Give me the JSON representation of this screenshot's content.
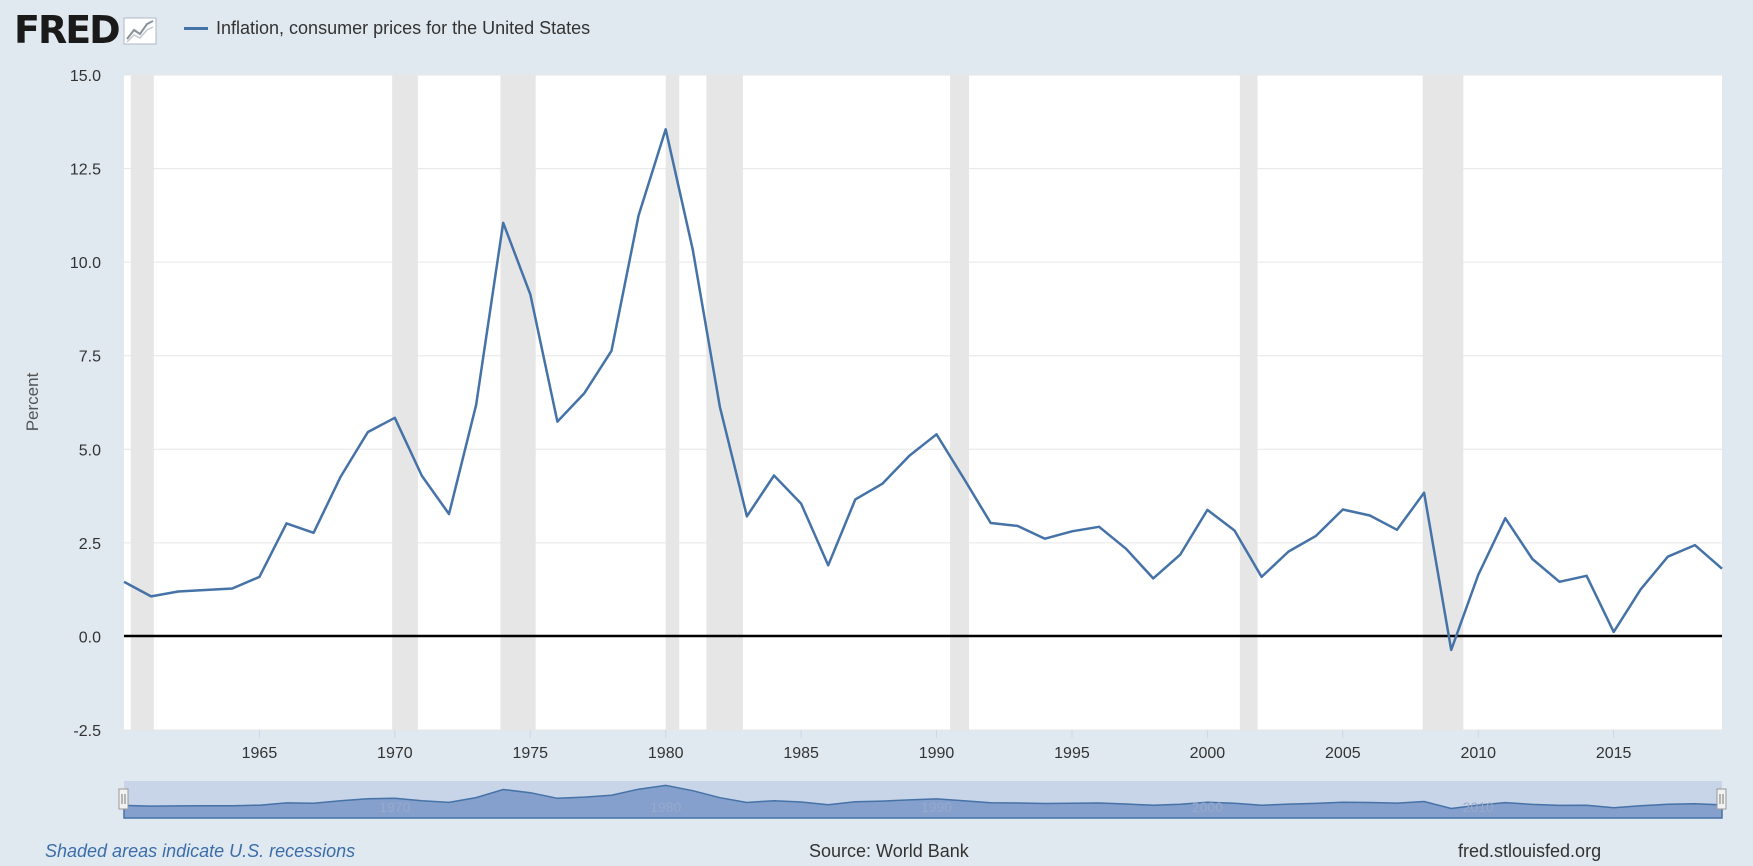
{
  "header": {
    "logo_text": "FRED",
    "legend_label": "Inflation, consumer prices for the United States",
    "line_color": "#4572a7",
    "recession_color": "#e6e6e6"
  },
  "footer": {
    "recession_note": "Shaded areas indicate U.S. recessions",
    "source": "Source: World Bank",
    "site": "fred.stlouisfed.org"
  },
  "navigator": {
    "tick_labels": [
      "1970",
      "1980",
      "1990",
      "2000",
      "2010"
    ]
  },
  "chart_data": {
    "type": "line",
    "title": "",
    "xlabel": "",
    "ylabel": "Percent",
    "xlim": [
      1960,
      2019
    ],
    "ylim": [
      -2.5,
      15.0
    ],
    "yticks": [
      "15.0",
      "12.5",
      "10.0",
      "7.5",
      "5.0",
      "2.5",
      "0.0",
      "-2.5"
    ],
    "xticks": [
      "1965",
      "1970",
      "1975",
      "1980",
      "1985",
      "1990",
      "1995",
      "2000",
      "2005",
      "2010",
      "2015"
    ],
    "grid": true,
    "legend": "top-left",
    "recessions": [
      [
        1960.25,
        1961.1
      ],
      [
        1969.9,
        1970.85
      ],
      [
        1973.9,
        1975.2
      ],
      [
        1980.0,
        1980.5
      ],
      [
        1981.5,
        1982.85
      ],
      [
        1990.5,
        1991.2
      ],
      [
        2001.2,
        2001.85
      ],
      [
        2007.95,
        2009.45
      ]
    ],
    "series": [
      {
        "name": "Inflation, consumer prices for the United States",
        "x": [
          1960,
          1961,
          1962,
          1963,
          1964,
          1965,
          1966,
          1967,
          1968,
          1969,
          1970,
          1971,
          1972,
          1973,
          1974,
          1975,
          1976,
          1977,
          1978,
          1979,
          1980,
          1981,
          1982,
          1983,
          1984,
          1985,
          1986,
          1987,
          1988,
          1989,
          1990,
          1991,
          1992,
          1993,
          1994,
          1995,
          1996,
          1997,
          1998,
          1999,
          2000,
          2001,
          2002,
          2003,
          2004,
          2005,
          2006,
          2007,
          2008,
          2009,
          2010,
          2011,
          2012,
          2013,
          2014,
          2015,
          2016,
          2017,
          2018,
          2019
        ],
        "values": [
          1.46,
          1.07,
          1.2,
          1.24,
          1.28,
          1.59,
          3.02,
          2.77,
          4.27,
          5.46,
          5.84,
          4.29,
          3.27,
          6.18,
          11.05,
          9.14,
          5.74,
          6.5,
          7.63,
          11.25,
          13.55,
          10.33,
          6.13,
          3.21,
          4.3,
          3.55,
          1.9,
          3.66,
          4.08,
          4.83,
          5.4,
          4.23,
          3.03,
          2.95,
          2.61,
          2.81,
          2.93,
          2.34,
          1.55,
          2.19,
          3.38,
          2.83,
          1.59,
          2.27,
          2.68,
          3.39,
          3.23,
          2.85,
          3.84,
          -0.36,
          1.64,
          3.16,
          2.07,
          1.46,
          1.62,
          0.12,
          1.26,
          2.13,
          2.44,
          1.81
        ]
      }
    ]
  }
}
